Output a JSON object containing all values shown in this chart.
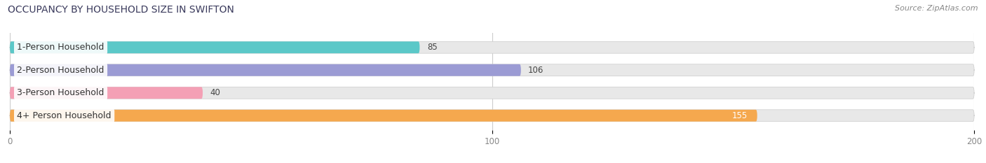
{
  "title": "OCCUPANCY BY HOUSEHOLD SIZE IN SWIFTON",
  "source": "Source: ZipAtlas.com",
  "categories": [
    "1-Person Household",
    "2-Person Household",
    "3-Person Household",
    "4+ Person Household"
  ],
  "values": [
    85,
    106,
    40,
    155
  ],
  "bar_colors": [
    "#5bc8c8",
    "#9b9bd4",
    "#f4a0b5",
    "#f5a84e"
  ],
  "bar_bg_color": "#e8e8e8",
  "xlim": [
    0,
    200
  ],
  "xticks": [
    0,
    100,
    200
  ],
  "figsize": [
    14.06,
    2.33
  ],
  "dpi": 100,
  "title_fontsize": 10,
  "label_fontsize": 9,
  "value_fontsize": 8.5,
  "source_fontsize": 8,
  "background_color": "#ffffff",
  "bar_height": 0.52,
  "value_color_dark": "#444444",
  "value_color_light": "#ffffff"
}
